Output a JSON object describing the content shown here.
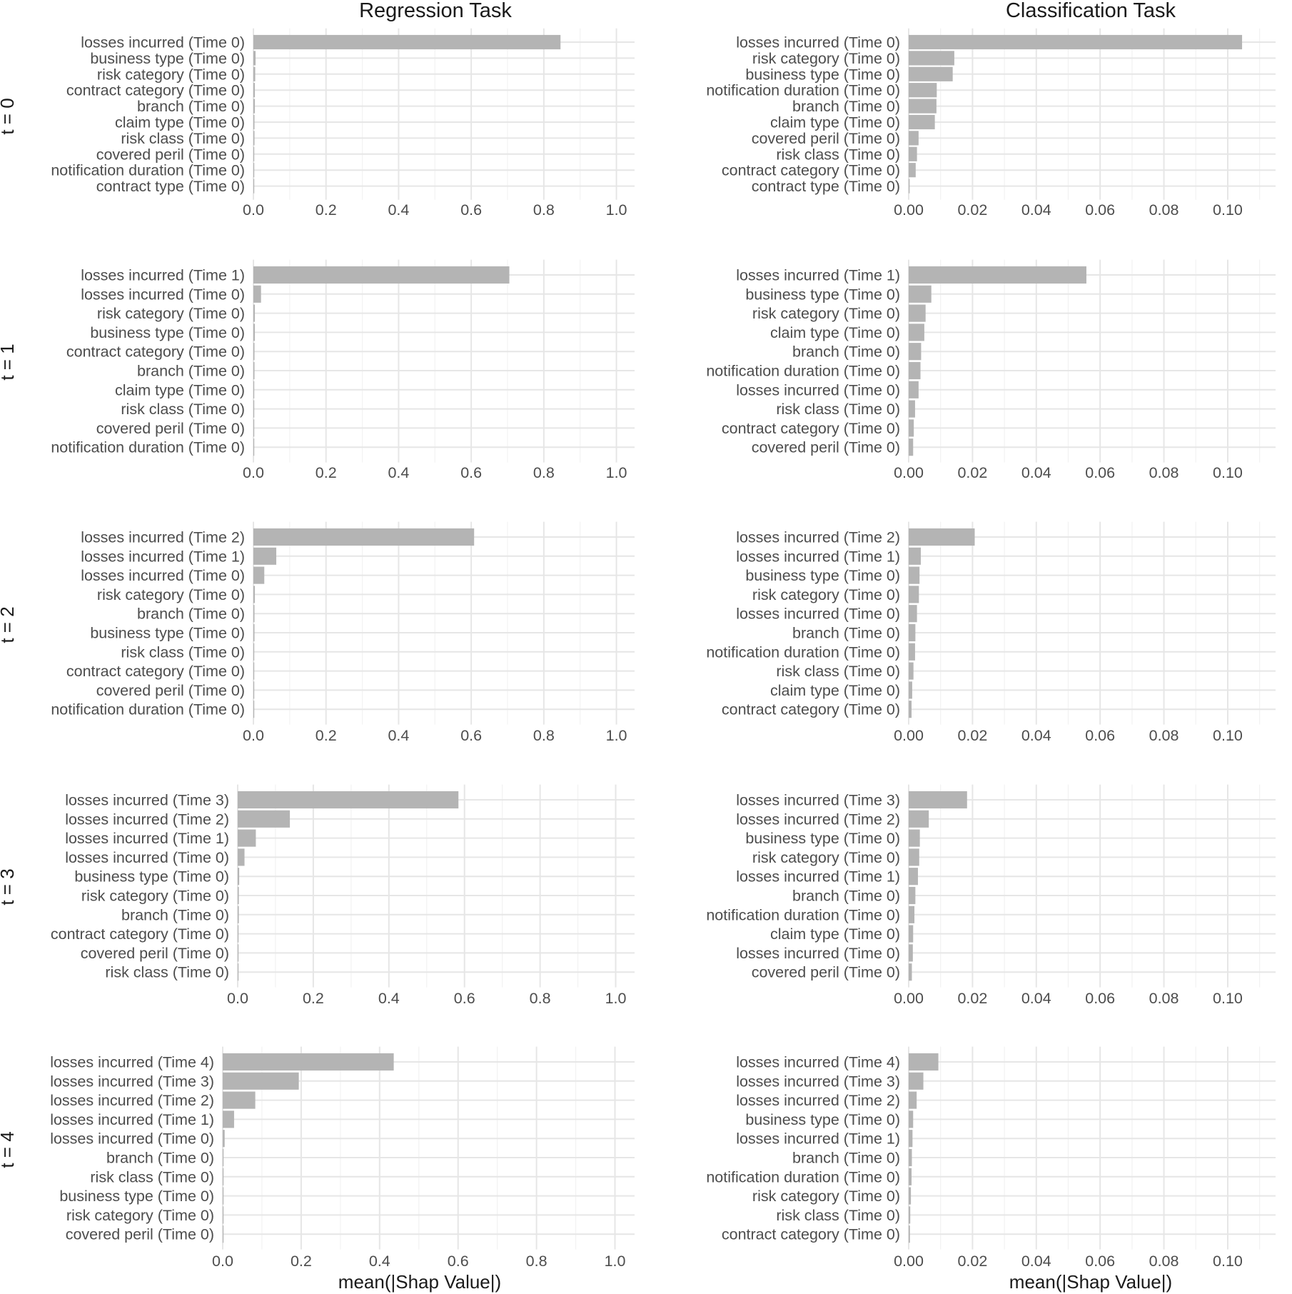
{
  "figure": {
    "col_titles": [
      "Regression Task",
      "Classification Task"
    ],
    "row_labels": [
      "t = 0",
      "t = 1",
      "t = 2",
      "t = 3",
      "t = 4"
    ],
    "x_label": "mean(|Shap Value|)"
  },
  "chart_data": [
    {
      "type": "bar",
      "orientation": "horizontal",
      "facet": "Regression Task / t = 0",
      "categories": [
        "losses incurred (Time 0)",
        "business type (Time 0)",
        "risk category (Time 0)",
        "contract category (Time 0)",
        "branch (Time 0)",
        "claim type (Time 0)",
        "risk class (Time 0)",
        "covered peril (Time 0)",
        "notification duration (Time 0)",
        "contract type (Time 0)"
      ],
      "values": [
        0.846,
        0.006,
        0.005,
        0.004,
        0.004,
        0.003,
        0.003,
        0.002,
        0.002,
        0.001
      ],
      "xlim": [
        0,
        1.05
      ],
      "xticks": [
        0.0,
        0.2,
        0.4,
        0.6,
        0.8,
        1.0
      ],
      "xtick_labels": [
        "0.0",
        "0.2",
        "0.4",
        "0.6",
        "0.8",
        "1.0"
      ]
    },
    {
      "type": "bar",
      "orientation": "horizontal",
      "facet": "Classification Task / t = 0",
      "categories": [
        "losses incurred (Time 0)",
        "risk category (Time 0)",
        "business type (Time 0)",
        "notification duration (Time 0)",
        "branch (Time 0)",
        "claim type (Time 0)",
        "covered peril (Time 0)",
        "risk class (Time 0)",
        "contract category (Time 0)",
        "contract type (Time 0)"
      ],
      "values": [
        0.1045,
        0.0143,
        0.0138,
        0.0088,
        0.0087,
        0.0082,
        0.0031,
        0.0026,
        0.0022,
        0.0003
      ],
      "xlim": [
        0,
        0.115
      ],
      "xticks": [
        0.0,
        0.02,
        0.04,
        0.06,
        0.08,
        0.1
      ],
      "xtick_labels": [
        "0.00",
        "0.02",
        "0.04",
        "0.06",
        "0.08",
        "0.10"
      ]
    },
    {
      "type": "bar",
      "orientation": "horizontal",
      "facet": "Regression Task / t = 1",
      "categories": [
        "losses incurred (Time 1)",
        "losses incurred (Time 0)",
        "risk category (Time 0)",
        "business type (Time 0)",
        "contract category (Time 0)",
        "branch (Time 0)",
        "claim type (Time 0)",
        "risk class (Time 0)",
        "covered peril (Time 0)",
        "notification duration (Time 0)"
      ],
      "values": [
        0.705,
        0.021,
        0.004,
        0.004,
        0.003,
        0.003,
        0.002,
        0.002,
        0.002,
        0.001
      ],
      "xlim": [
        0,
        1.05
      ],
      "xticks": [
        0.0,
        0.2,
        0.4,
        0.6,
        0.8,
        1.0
      ],
      "xtick_labels": [
        "0.0",
        "0.2",
        "0.4",
        "0.6",
        "0.8",
        "1.0"
      ]
    },
    {
      "type": "bar",
      "orientation": "horizontal",
      "facet": "Classification Task / t = 1",
      "categories": [
        "losses incurred (Time 1)",
        "business type (Time 0)",
        "risk category (Time 0)",
        "claim type (Time 0)",
        "branch (Time 0)",
        "notification duration (Time 0)",
        "losses incurred (Time 0)",
        "risk class (Time 0)",
        "contract category (Time 0)",
        "covered peril (Time 0)"
      ],
      "values": [
        0.0557,
        0.0071,
        0.0053,
        0.0049,
        0.0039,
        0.0037,
        0.0031,
        0.002,
        0.0016,
        0.0014
      ],
      "xlim": [
        0,
        0.115
      ],
      "xticks": [
        0.0,
        0.02,
        0.04,
        0.06,
        0.08,
        0.1
      ],
      "xtick_labels": [
        "0.00",
        "0.02",
        "0.04",
        "0.06",
        "0.08",
        "0.10"
      ]
    },
    {
      "type": "bar",
      "orientation": "horizontal",
      "facet": "Regression Task / t = 2",
      "categories": [
        "losses incurred (Time 2)",
        "losses incurred (Time 1)",
        "losses incurred (Time 0)",
        "risk category (Time 0)",
        "branch (Time 0)",
        "business type (Time 0)",
        "risk class (Time 0)",
        "contract category (Time 0)",
        "covered peril (Time 0)",
        "notification duration (Time 0)"
      ],
      "values": [
        0.608,
        0.063,
        0.03,
        0.004,
        0.003,
        0.003,
        0.002,
        0.002,
        0.001,
        0.001
      ],
      "xlim": [
        0,
        1.05
      ],
      "xticks": [
        0.0,
        0.2,
        0.4,
        0.6,
        0.8,
        1.0
      ],
      "xtick_labels": [
        "0.0",
        "0.2",
        "0.4",
        "0.6",
        "0.8",
        "1.0"
      ]
    },
    {
      "type": "bar",
      "orientation": "horizontal",
      "facet": "Classification Task / t = 2",
      "categories": [
        "losses incurred (Time 2)",
        "losses incurred (Time 1)",
        "business type (Time 0)",
        "risk category (Time 0)",
        "losses incurred (Time 0)",
        "branch (Time 0)",
        "notification duration (Time 0)",
        "risk class (Time 0)",
        "claim type (Time 0)",
        "contract category (Time 0)"
      ],
      "values": [
        0.0207,
        0.0038,
        0.0034,
        0.0032,
        0.0026,
        0.0021,
        0.002,
        0.0015,
        0.0011,
        0.0009
      ],
      "xlim": [
        0,
        0.115
      ],
      "xticks": [
        0.0,
        0.02,
        0.04,
        0.06,
        0.08,
        0.1
      ],
      "xtick_labels": [
        "0.00",
        "0.02",
        "0.04",
        "0.06",
        "0.08",
        "0.10"
      ]
    },
    {
      "type": "bar",
      "orientation": "horizontal",
      "facet": "Regression Task / t = 3",
      "categories": [
        "losses incurred (Time 3)",
        "losses incurred (Time 2)",
        "losses incurred (Time 1)",
        "losses incurred (Time 0)",
        "business type (Time 0)",
        "risk category (Time 0)",
        "branch (Time 0)",
        "contract category (Time 0)",
        "covered peril (Time 0)",
        "risk class (Time 0)"
      ],
      "values": [
        0.584,
        0.138,
        0.048,
        0.018,
        0.004,
        0.003,
        0.003,
        0.002,
        0.001,
        0.001
      ],
      "xlim": [
        0,
        1.05
      ],
      "xticks": [
        0.0,
        0.2,
        0.4,
        0.6,
        0.8,
        1.0
      ],
      "xtick_labels": [
        "0.0",
        "0.2",
        "0.4",
        "0.6",
        "0.8",
        "1.0"
      ]
    },
    {
      "type": "bar",
      "orientation": "horizontal",
      "facet": "Classification Task / t = 3",
      "categories": [
        "losses incurred (Time 3)",
        "losses incurred (Time 2)",
        "business type (Time 0)",
        "risk category (Time 0)",
        "losses incurred (Time 1)",
        "branch (Time 0)",
        "notification duration (Time 0)",
        "claim type (Time 0)",
        "losses incurred (Time 0)",
        "covered peril (Time 0)"
      ],
      "values": [
        0.0183,
        0.0063,
        0.0035,
        0.0033,
        0.0029,
        0.0021,
        0.0018,
        0.0014,
        0.0013,
        0.001
      ],
      "xlim": [
        0,
        0.115
      ],
      "xticks": [
        0.0,
        0.02,
        0.04,
        0.06,
        0.08,
        0.1
      ],
      "xtick_labels": [
        "0.00",
        "0.02",
        "0.04",
        "0.06",
        "0.08",
        "0.10"
      ]
    },
    {
      "type": "bar",
      "orientation": "horizontal",
      "facet": "Regression Task / t = 4",
      "categories": [
        "losses incurred (Time 4)",
        "losses incurred (Time 3)",
        "losses incurred (Time 2)",
        "losses incurred (Time 1)",
        "losses incurred (Time 0)",
        "branch (Time 0)",
        "risk class (Time 0)",
        "business type (Time 0)",
        "risk category (Time 0)",
        "covered peril (Time 0)"
      ],
      "values": [
        0.436,
        0.194,
        0.083,
        0.029,
        0.005,
        0.002,
        0.002,
        0.002,
        0.001,
        0.001
      ],
      "xlim": [
        0,
        1.05
      ],
      "xticks": [
        0.0,
        0.2,
        0.4,
        0.6,
        0.8,
        1.0
      ],
      "xtick_labels": [
        "0.0",
        "0.2",
        "0.4",
        "0.6",
        "0.8",
        "1.0"
      ]
    },
    {
      "type": "bar",
      "orientation": "horizontal",
      "facet": "Classification Task / t = 4",
      "categories": [
        "losses incurred (Time 4)",
        "losses incurred (Time 3)",
        "losses incurred (Time 2)",
        "business type (Time 0)",
        "losses incurred (Time 1)",
        "branch (Time 0)",
        "notification duration (Time 0)",
        "risk category (Time 0)",
        "risk class (Time 0)",
        "contract category (Time 0)"
      ],
      "values": [
        0.0093,
        0.0046,
        0.0025,
        0.0014,
        0.0012,
        0.001,
        0.0009,
        0.0007,
        0.0005,
        0.0004
      ],
      "xlim": [
        0,
        0.115
      ],
      "xticks": [
        0.0,
        0.02,
        0.04,
        0.06,
        0.08,
        0.1
      ],
      "xtick_labels": [
        "0.00",
        "0.02",
        "0.04",
        "0.06",
        "0.08",
        "0.10"
      ]
    }
  ],
  "style": {
    "bar_color": "#b4b4b4",
    "grid_color": "#e6e6e6",
    "text_color": "#4d4d4d"
  }
}
